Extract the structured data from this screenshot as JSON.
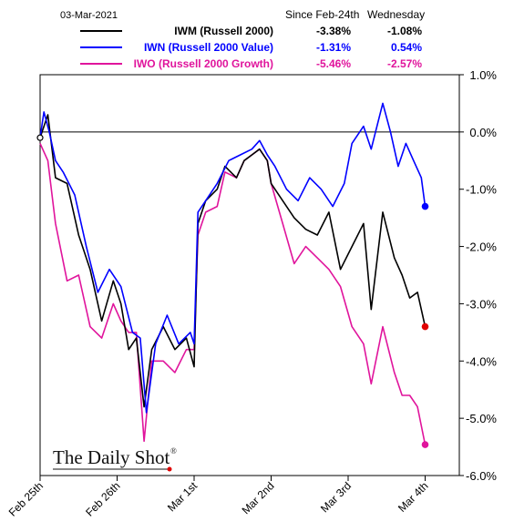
{
  "chart_data": {
    "type": "line",
    "date_label": "03-Mar-2021",
    "column_headers": [
      "Since Feb-24th",
      "Wednesday"
    ],
    "series": [
      {
        "name": "IWM (Russell 2000)",
        "since": "-3.38%",
        "wednesday": "-1.08%",
        "color": "#000000",
        "label_color": "#000000",
        "points": [
          [
            0,
            -0.1
          ],
          [
            0.1,
            0.3
          ],
          [
            0.2,
            -0.8
          ],
          [
            0.35,
            -0.9
          ],
          [
            0.5,
            -1.8
          ],
          [
            0.65,
            -2.4
          ],
          [
            0.8,
            -3.3
          ],
          [
            0.95,
            -2.6
          ],
          [
            1.05,
            -3.0
          ],
          [
            1.15,
            -3.8
          ],
          [
            1.25,
            -3.6
          ],
          [
            1.35,
            -4.8
          ],
          [
            1.45,
            -3.8
          ],
          [
            1.6,
            -3.4
          ],
          [
            1.75,
            -3.8
          ],
          [
            1.9,
            -3.6
          ],
          [
            2.0,
            -4.1
          ],
          [
            2.05,
            -1.6
          ],
          [
            2.15,
            -1.2
          ],
          [
            2.3,
            -1.0
          ],
          [
            2.4,
            -0.6
          ],
          [
            2.55,
            -0.8
          ],
          [
            2.65,
            -0.5
          ],
          [
            2.75,
            -0.4
          ],
          [
            2.85,
            -0.3
          ],
          [
            2.95,
            -0.5
          ],
          [
            3.0,
            -0.9
          ],
          [
            3.15,
            -1.2
          ],
          [
            3.3,
            -1.5
          ],
          [
            3.45,
            -1.7
          ],
          [
            3.6,
            -1.8
          ],
          [
            3.75,
            -1.4
          ],
          [
            3.9,
            -2.4
          ],
          [
            4.05,
            -2.0
          ],
          [
            4.2,
            -1.6
          ],
          [
            4.3,
            -3.1
          ],
          [
            4.45,
            -1.4
          ],
          [
            4.6,
            -2.2
          ],
          [
            4.7,
            -2.5
          ],
          [
            4.8,
            -2.9
          ],
          [
            4.9,
            -2.8
          ],
          [
            5.0,
            -3.4
          ]
        ]
      },
      {
        "name": "IWN (Russell 2000 Value)",
        "since": "-1.31%",
        "wednesday": "0.54%",
        "color": "#0000ff",
        "label_color": "#0000ff",
        "points": [
          [
            0,
            -0.1
          ],
          [
            0.05,
            0.35
          ],
          [
            0.12,
            0.0
          ],
          [
            0.2,
            -0.5
          ],
          [
            0.3,
            -0.7
          ],
          [
            0.45,
            -1.1
          ],
          [
            0.6,
            -2.0
          ],
          [
            0.75,
            -2.8
          ],
          [
            0.9,
            -2.4
          ],
          [
            1.05,
            -2.7
          ],
          [
            1.2,
            -3.5
          ],
          [
            1.3,
            -3.6
          ],
          [
            1.38,
            -4.9
          ],
          [
            1.5,
            -3.7
          ],
          [
            1.65,
            -3.2
          ],
          [
            1.8,
            -3.7
          ],
          [
            1.95,
            -3.5
          ],
          [
            2.0,
            -3.7
          ],
          [
            2.05,
            -1.4
          ],
          [
            2.15,
            -1.2
          ],
          [
            2.3,
            -0.9
          ],
          [
            2.45,
            -0.5
          ],
          [
            2.6,
            -0.4
          ],
          [
            2.75,
            -0.3
          ],
          [
            2.85,
            -0.15
          ],
          [
            2.95,
            -0.4
          ],
          [
            3.05,
            -0.6
          ],
          [
            3.2,
            -1.0
          ],
          [
            3.35,
            -1.2
          ],
          [
            3.5,
            -0.8
          ],
          [
            3.65,
            -1.0
          ],
          [
            3.8,
            -1.3
          ],
          [
            3.95,
            -0.9
          ],
          [
            4.05,
            -0.2
          ],
          [
            4.2,
            0.1
          ],
          [
            4.3,
            -0.3
          ],
          [
            4.45,
            0.5
          ],
          [
            4.55,
            0.0
          ],
          [
            4.65,
            -0.6
          ],
          [
            4.75,
            -0.2
          ],
          [
            4.85,
            -0.5
          ],
          [
            4.95,
            -0.8
          ],
          [
            5.0,
            -1.3
          ]
        ]
      },
      {
        "name": "IWO (Russell 2000 Growth)",
        "since": "-5.46%",
        "wednesday": "-2.57%",
        "color": "#e0149c",
        "label_color": "#e0149c",
        "points": [
          [
            0,
            -0.2
          ],
          [
            0.1,
            -0.5
          ],
          [
            0.2,
            -1.6
          ],
          [
            0.35,
            -2.6
          ],
          [
            0.5,
            -2.5
          ],
          [
            0.65,
            -3.4
          ],
          [
            0.8,
            -3.6
          ],
          [
            0.95,
            -3.0
          ],
          [
            1.05,
            -3.3
          ],
          [
            1.15,
            -3.5
          ],
          [
            1.25,
            -3.5
          ],
          [
            1.35,
            -5.4
          ],
          [
            1.45,
            -4.0
          ],
          [
            1.6,
            -4.0
          ],
          [
            1.75,
            -4.2
          ],
          [
            1.9,
            -3.8
          ],
          [
            2.0,
            -3.8
          ],
          [
            2.05,
            -1.8
          ],
          [
            2.15,
            -1.4
          ],
          [
            2.3,
            -1.3
          ],
          [
            2.4,
            -0.7
          ],
          [
            2.55,
            -0.8
          ],
          [
            2.65,
            -0.5
          ],
          [
            2.75,
            -0.4
          ],
          [
            2.85,
            -0.3
          ],
          [
            2.95,
            -0.5
          ],
          [
            3.0,
            -0.9
          ],
          [
            3.15,
            -1.6
          ],
          [
            3.3,
            -2.3
          ],
          [
            3.45,
            -2.0
          ],
          [
            3.6,
            -2.2
          ],
          [
            3.75,
            -2.4
          ],
          [
            3.9,
            -2.7
          ],
          [
            4.05,
            -3.4
          ],
          [
            4.2,
            -3.7
          ],
          [
            4.3,
            -4.4
          ],
          [
            4.45,
            -3.4
          ],
          [
            4.6,
            -4.2
          ],
          [
            4.7,
            -4.6
          ],
          [
            4.8,
            -4.6
          ],
          [
            4.9,
            -4.8
          ],
          [
            5.0,
            -5.46
          ]
        ]
      }
    ],
    "x_tick_labels": [
      "Feb 25th",
      "Feb 26th",
      "Mar 1st",
      "Mar 2nd",
      "Mar 3rd",
      "Mar 4th"
    ],
    "x_ticks": [
      0,
      1,
      2,
      3,
      4,
      5
    ],
    "xlim": [
      0,
      5.4
    ],
    "y_tick_labels": [
      "1.0%",
      "0.0%",
      "-1.0%",
      "-2.0%",
      "-3.0%",
      "-4.0%",
      "-5.0%",
      "-6.0%"
    ],
    "y_ticks": [
      1,
      0,
      -1,
      -2,
      -3,
      -4,
      -5,
      -6
    ],
    "ylim": [
      -6,
      1
    ],
    "grid": false,
    "zero_line": true,
    "legend_position": "top"
  },
  "brand": {
    "name": "The Daily Shot",
    "mark": "®"
  }
}
